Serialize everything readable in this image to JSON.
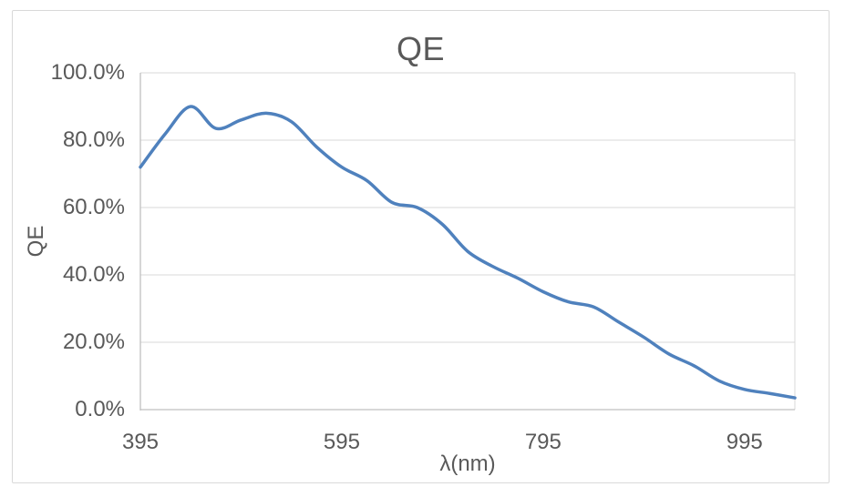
{
  "window": {
    "background": "#ffffff",
    "frame_border_color": "#d9d9d9"
  },
  "chart_data": {
    "type": "line",
    "title": "QE",
    "xlabel": "λ(nm)",
    "ylabel": "QE",
    "legend": "none",
    "grid": "horizontal",
    "smooth": true,
    "xlim": [
      395,
      1045
    ],
    "ylim": [
      0,
      100
    ],
    "x_ticks": [
      {
        "value": 395,
        "label": "395"
      },
      {
        "value": 595,
        "label": "595"
      },
      {
        "value": 795,
        "label": "795"
      },
      {
        "value": 995,
        "label": "995"
      }
    ],
    "y_ticks": [
      {
        "value": 0,
        "label": "0.0%"
      },
      {
        "value": 20,
        "label": "20.0%"
      },
      {
        "value": 40,
        "label": "40.0%"
      },
      {
        "value": 60,
        "label": "60.0%"
      },
      {
        "value": 80,
        "label": "80.0%"
      },
      {
        "value": 100,
        "label": "100.0%"
      }
    ],
    "x": [
      395,
      420,
      445,
      470,
      495,
      520,
      545,
      570,
      595,
      620,
      645,
      670,
      695,
      720,
      745,
      770,
      795,
      820,
      845,
      870,
      895,
      920,
      945,
      970,
      995,
      1020,
      1045
    ],
    "series": [
      {
        "name": "QE",
        "color": "#4f81bd",
        "stroke_width": 3.5,
        "values_percent": [
          72,
          82,
          90,
          83.5,
          86,
          88,
          85.5,
          78,
          72,
          68,
          61.5,
          60,
          55,
          47,
          42.5,
          39,
          35,
          32,
          30.5,
          26,
          21.5,
          16.5,
          13,
          8.5,
          6,
          4.8,
          3.5
        ]
      }
    ],
    "colors": {
      "text": "#595959",
      "gridline": "#d9d9d9",
      "axis_line": "#c0c0c0",
      "plot_right_border": "#d9d9d9"
    }
  }
}
